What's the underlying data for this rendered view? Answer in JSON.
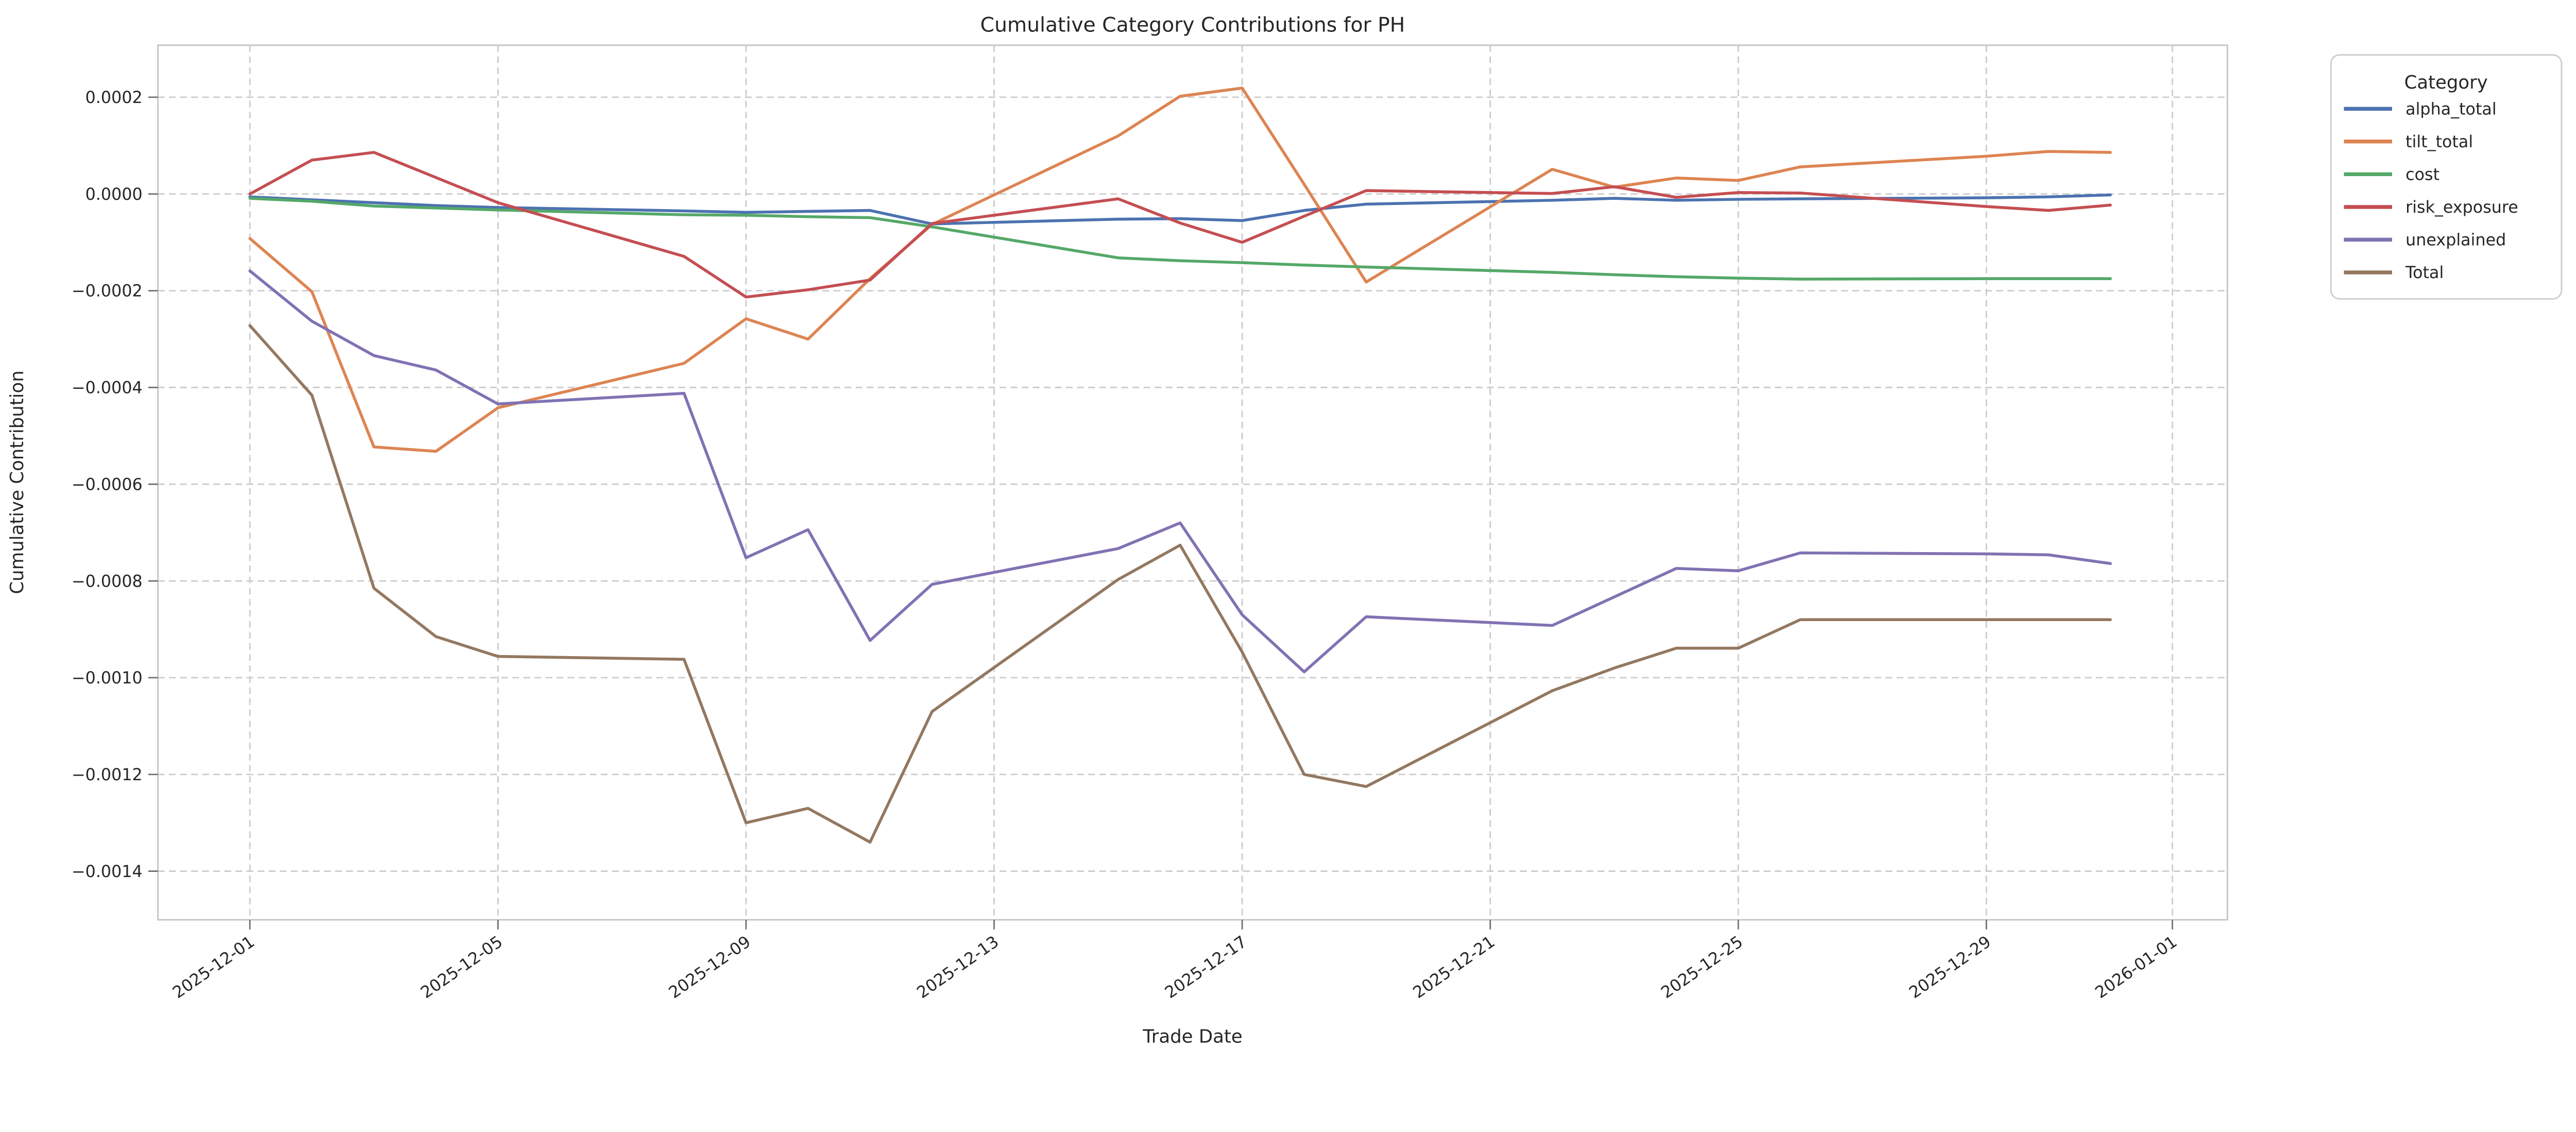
{
  "chart_data": {
    "type": "line",
    "title": "Cumulative Category Contributions for PH",
    "xlabel": "Trade Date",
    "ylabel": "Cumulative Contribution",
    "legend": {
      "title": "Category",
      "position": "outside upper right"
    },
    "grid": true,
    "ylim": [
      -0.0015,
      0.0003
    ],
    "x": [
      "2025-12-01",
      "2025-12-02",
      "2025-12-03",
      "2025-12-04",
      "2025-12-05",
      "2025-12-08",
      "2025-12-09",
      "2025-12-10",
      "2025-12-11",
      "2025-12-12",
      "2025-12-15",
      "2025-12-16",
      "2025-12-17",
      "2025-12-18",
      "2025-12-19",
      "2025-12-22",
      "2025-12-23",
      "2025-12-24",
      "2025-12-25",
      "2025-12-26",
      "2025-12-29",
      "2025-12-30",
      "2025-12-31"
    ],
    "x_ticks": [
      {
        "date": "2025-12-01",
        "label": "2025-12-01"
      },
      {
        "date": "2025-12-05",
        "label": "2025-12-05"
      },
      {
        "date": "2025-12-09",
        "label": "2025-12-09"
      },
      {
        "date": "2025-12-13",
        "label": "2025-12-13"
      },
      {
        "date": "2025-12-17",
        "label": "2025-12-17"
      },
      {
        "date": "2025-12-21",
        "label": "2025-12-21"
      },
      {
        "date": "2025-12-25",
        "label": "2025-12-25"
      },
      {
        "date": "2025-12-29",
        "label": "2025-12-29"
      },
      {
        "date": "2026-01-01",
        "label": "2026-01-01"
      }
    ],
    "y_ticks": [
      {
        "v": 0.0002,
        "label": "0.0002"
      },
      {
        "v": 0.0,
        "label": "0.0000"
      },
      {
        "v": -0.0002,
        "label": "−0.0002"
      },
      {
        "v": -0.0004,
        "label": "−0.0004"
      },
      {
        "v": -0.0006,
        "label": "−0.0006"
      },
      {
        "v": -0.0008,
        "label": "−0.0008"
      },
      {
        "v": -0.001,
        "label": "−0.0010"
      },
      {
        "v": -0.0012,
        "label": "−0.0012"
      },
      {
        "v": -0.0014,
        "label": "−0.0014"
      }
    ],
    "series": [
      {
        "name": "alpha_total",
        "color": "#4C72B0",
        "values": [
          -6e-06,
          -1.2e-05,
          -1.8e-05,
          -2.4e-05,
          -2.8e-05,
          -3.5e-05,
          -3.8e-05,
          -3.6e-05,
          -3.4e-05,
          -6.2e-05,
          -5.2e-05,
          -5.1e-05,
          -5.5e-05,
          -3.4e-05,
          -2.1e-05,
          -1.3e-05,
          -9e-06,
          -1.3e-05,
          -1.1e-05,
          -1e-05,
          -8e-06,
          -6e-06,
          -2e-06
        ]
      },
      {
        "name": "tilt_total",
        "color": "#DD8452",
        "values": [
          -9.2e-05,
          -0.000202,
          -0.000523,
          -0.000532,
          -0.000442,
          -0.00035,
          -0.000258,
          -0.0003,
          -0.000175,
          -6.3e-05,
          0.00012,
          0.000202,
          0.000219,
          2e-05,
          -0.000182,
          5.1e-05,
          1.4e-05,
          3.3e-05,
          2.8e-05,
          5.6e-05,
          7.8e-05,
          8.8e-05,
          8.6e-05
        ]
      },
      {
        "name": "cost",
        "color": "#55A868",
        "values": [
          -9e-06,
          -1.5e-05,
          -2.5e-05,
          -2.9e-05,
          -3.3e-05,
          -4.3e-05,
          -4.4e-05,
          -4.7e-05,
          -4.9e-05,
          -6.8e-05,
          -0.000132,
          -0.000138,
          -0.000142,
          -0.000147,
          -0.000151,
          -0.000162,
          -0.000167,
          -0.000171,
          -0.000174,
          -0.000176,
          -0.000175,
          -0.000175,
          -0.000175
        ]
      },
      {
        "name": "risk_exposure",
        "color": "#C44E52",
        "values": [
          0.0,
          7e-05,
          8.6e-05,
          3.4e-05,
          -1.8e-05,
          -0.000129,
          -0.000213,
          -0.000198,
          -0.000178,
          -6.1e-05,
          -1e-05,
          -6e-05,
          -0.0001,
          -4.6e-05,
          7e-06,
          1e-06,
          1.5e-05,
          -7e-06,
          3e-06,
          2e-06,
          -2.6e-05,
          -3.4e-05,
          -2.3e-05
        ]
      },
      {
        "name": "unexplained",
        "color": "#8172B3",
        "values": [
          -0.000159,
          -0.000263,
          -0.000334,
          -0.000364,
          -0.000434,
          -0.000412,
          -0.000752,
          -0.000694,
          -0.000923,
          -0.000807,
          -0.000733,
          -0.00068,
          -0.00087,
          -0.000988,
          -0.000874,
          -0.000892,
          -0.000833,
          -0.000774,
          -0.000779,
          -0.000742,
          -0.000744,
          -0.000746,
          -0.000764
        ]
      },
      {
        "name": "Total",
        "color": "#937860",
        "values": [
          -0.000272,
          -0.000416,
          -0.000815,
          -0.000915,
          -0.000956,
          -0.000962,
          -0.0013,
          -0.00127,
          -0.00134,
          -0.00107,
          -0.000797,
          -0.000726,
          -0.000947,
          -0.0012,
          -0.001225,
          -0.001027,
          -0.00098,
          -0.000939,
          -0.000939,
          -0.00088,
          -0.00088,
          -0.00088,
          -0.00088
        ]
      }
    ]
  }
}
